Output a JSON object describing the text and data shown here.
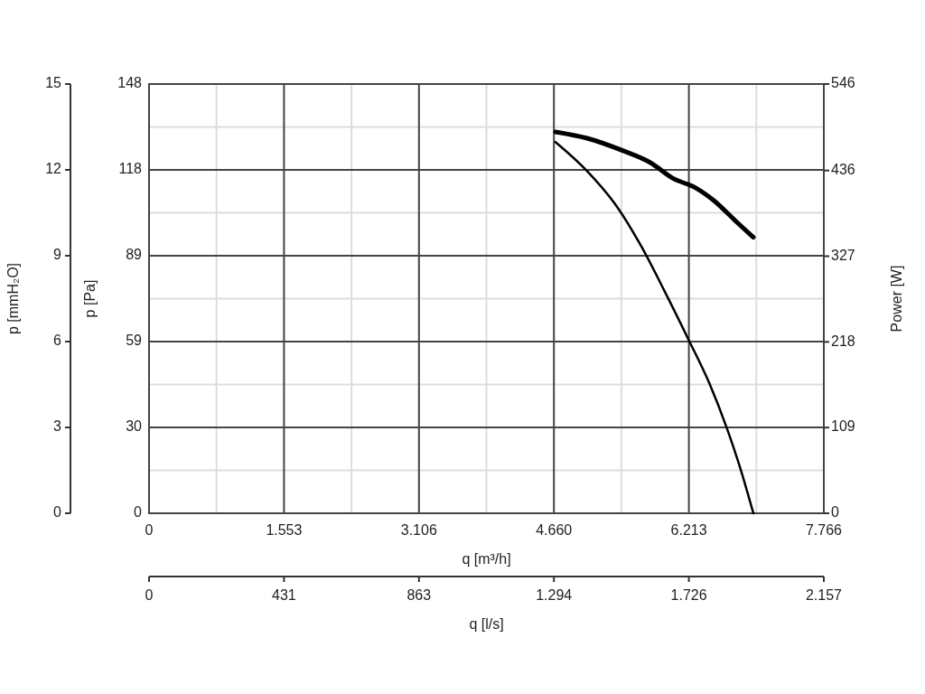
{
  "chart_data": {
    "type": "line",
    "xlabel": "q [m³/h]",
    "ylabel": "p [Pa]",
    "y2label": "Power [W]",
    "y3label": "p [mmH₂O]",
    "x2label": "q [l/s]",
    "xlim": [
      0,
      7766
    ],
    "xticks": [
      0,
      {
        "value": 1553.2,
        "label": "1.553"
      },
      {
        "value": 3106.4,
        "label": "3.106"
      },
      {
        "value": 4659.6,
        "label": "4.660"
      },
      {
        "value": 6212.8,
        "label": "6.213"
      },
      {
        "value": 7766,
        "label": "7.766"
      }
    ],
    "x2lim": [
      0,
      2157
    ],
    "x2ticks": [
      0,
      {
        "value": 431.4,
        "label": "431"
      },
      {
        "value": 862.8,
        "label": "863"
      },
      {
        "value": 1294.2,
        "label": "1.294"
      },
      {
        "value": 1725.6,
        "label": "1.726"
      },
      {
        "value": 2157,
        "label": "2.157"
      }
    ],
    "ylim": [
      0,
      148
    ],
    "yticks": [
      0,
      {
        "value": 29.6,
        "label": "30"
      },
      {
        "value": 59.2,
        "label": "59"
      },
      {
        "value": 88.8,
        "label": "89"
      },
      {
        "value": 118.4,
        "label": "118"
      },
      148
    ],
    "y2lim": [
      0,
      546
    ],
    "y2ticks": [
      0,
      109,
      218,
      327,
      436,
      546
    ],
    "y3lim": [
      0,
      15
    ],
    "y3ticks": [
      0,
      3,
      6,
      9,
      12,
      15
    ],
    "grid": true,
    "line_style": "solid",
    "marker": "none",
    "series": [
      {
        "color": "#000000",
        "x": [
          4678,
          5042,
          5354,
          5666,
          5926,
          6207,
          6446,
          6654,
          6810,
          6955
        ],
        "values": [
          128,
          118,
          107,
          92,
          77,
          60,
          45,
          29,
          15,
          0
        ]
      },
      {
        "color": "#000000",
        "axis": "y2",
        "x": [
          4678,
          5042,
          5458,
          5770,
          6030,
          6290,
          6498,
          6758,
          6955
        ],
        "values": [
          485,
          477,
          461,
          446,
          426,
          414,
          398,
          371,
          351
        ]
      }
    ]
  }
}
